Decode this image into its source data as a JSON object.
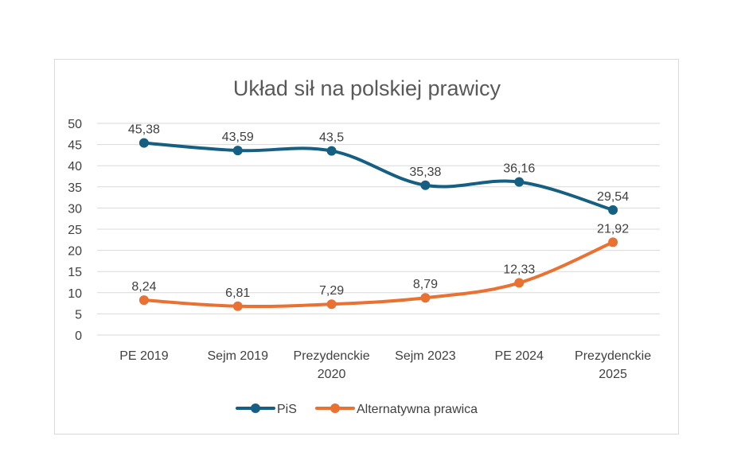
{
  "chart_data": {
    "type": "line",
    "title": "Układ sił na polskiej prawicy",
    "categories": [
      [
        "PE 2019"
      ],
      [
        "Sejm 2019"
      ],
      [
        "Prezydenckie",
        "2020"
      ],
      [
        "Sejm 2023"
      ],
      [
        "PE 2024"
      ],
      [
        "Prezydenckie",
        "2025"
      ]
    ],
    "series": [
      {
        "name": "PiS",
        "color": "#156082",
        "values": [
          45.38,
          43.59,
          43.5,
          35.38,
          36.16,
          29.54
        ],
        "labels": [
          "45,38",
          "43,59",
          "43,5",
          "35,38",
          "36,16",
          "29,54"
        ]
      },
      {
        "name": "Alternatywna prawica",
        "color": "#E97132",
        "values": [
          8.24,
          6.81,
          7.29,
          8.79,
          12.33,
          21.92
        ],
        "labels": [
          "8,24",
          "6,81",
          "7,29",
          "8,79",
          "12,33",
          "21,92"
        ]
      }
    ],
    "ylim": [
      0,
      50
    ],
    "yticks": [
      0,
      5,
      10,
      15,
      20,
      25,
      30,
      35,
      40,
      45,
      50
    ],
    "grid": true,
    "legend": "bottom",
    "smooth": true
  }
}
